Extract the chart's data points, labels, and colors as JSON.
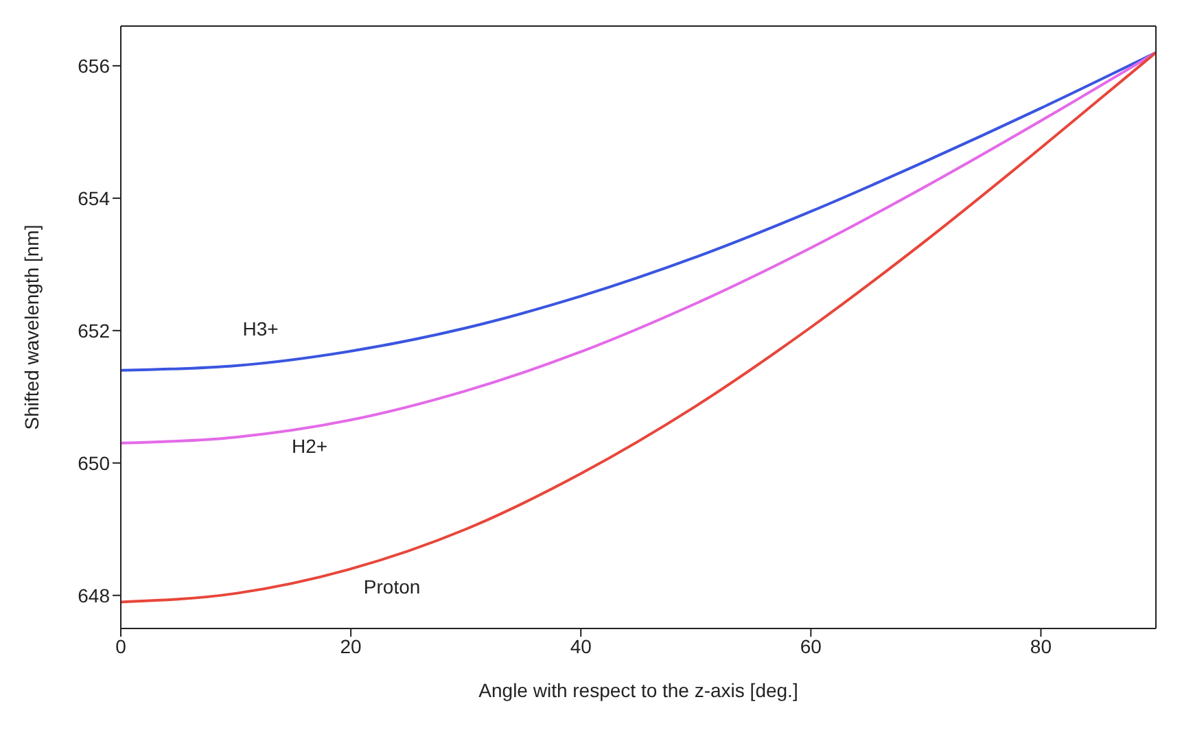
{
  "chart_data": {
    "type": "line",
    "xlabel": "Angle with respect to the z-axis [deg.]",
    "ylabel": "Shifted wavelength [nm]",
    "x": [
      0,
      10,
      20,
      30,
      40,
      50,
      60,
      70,
      80,
      90
    ],
    "series": [
      {
        "name": "H3+",
        "color": "#3a55e0",
        "values": [
          651.4,
          651.47,
          651.69,
          652.04,
          652.52,
          653.11,
          653.8,
          654.56,
          655.36,
          656.2
        ]
      },
      {
        "name": "H2+",
        "color": "#e46ae8",
        "values": [
          650.3,
          650.39,
          650.65,
          651.09,
          651.68,
          652.41,
          653.25,
          654.18,
          655.17,
          656.2
        ]
      },
      {
        "name": "Proton",
        "color": "#e8463a",
        "values": [
          647.9,
          648.03,
          648.4,
          649.0,
          649.84,
          650.86,
          652.05,
          653.36,
          654.76,
          656.2
        ]
      }
    ],
    "xlim": [
      0,
      90
    ],
    "xticks": [
      0,
      20,
      40,
      60,
      80
    ],
    "ylim": [
      647.5,
      656.6
    ],
    "yticks": [
      648,
      650,
      652,
      654,
      656
    ],
    "grid": false,
    "marker": "none",
    "line_style": "solid"
  }
}
